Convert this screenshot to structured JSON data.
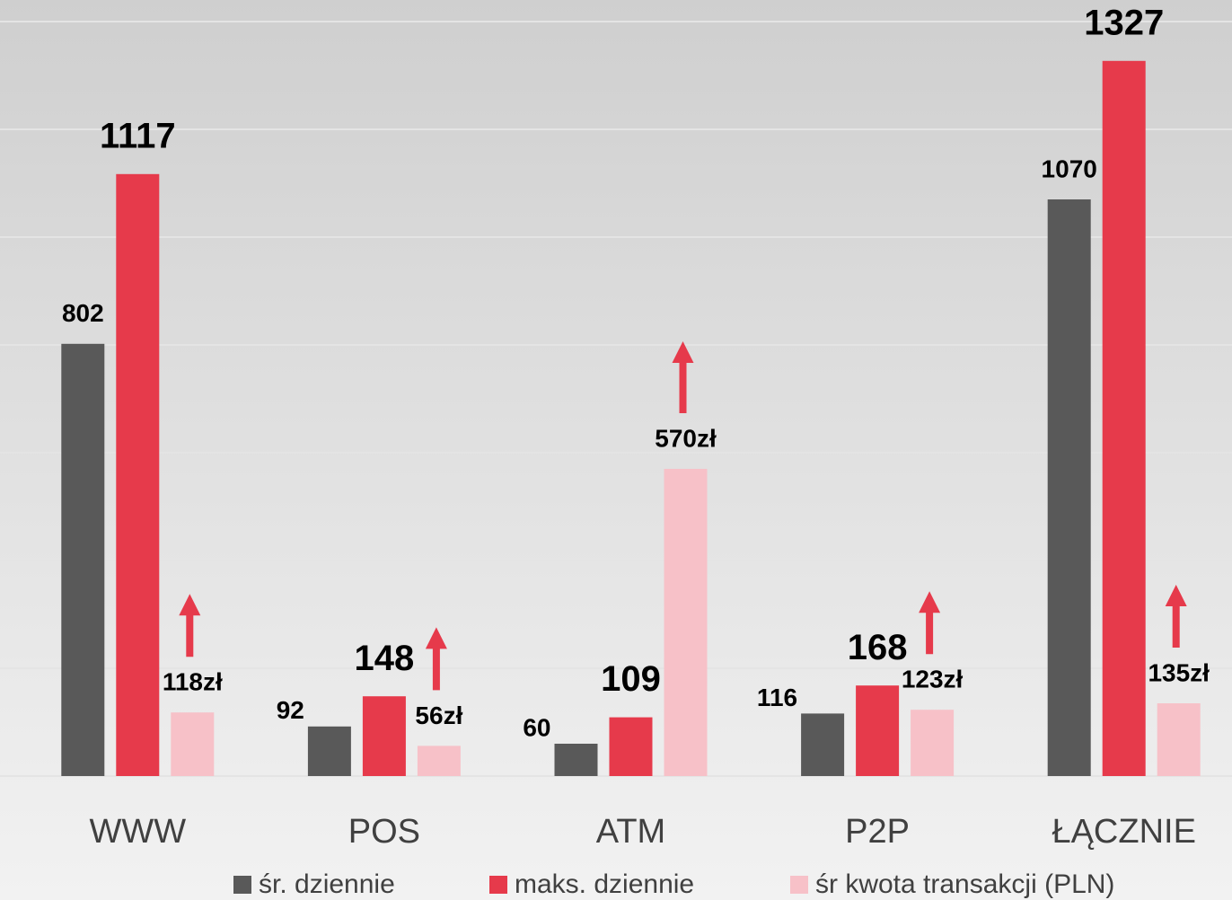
{
  "chart_data": {
    "type": "bar",
    "categories": [
      "WWW",
      "POS",
      "ATM",
      "P2P",
      "ŁĄCZNIE"
    ],
    "series": [
      {
        "name": "śr. dziennie",
        "color": "#595959",
        "values": [
          802,
          92,
          60,
          116,
          1070
        ]
      },
      {
        "name": "maks. dziennie",
        "color": "#e63a4b",
        "values": [
          1117,
          148,
          109,
          168,
          1327
        ]
      },
      {
        "name": "śr kwota transakcji (PLN)",
        "color": "#f7c1c8",
        "values": [
          118,
          56,
          570,
          123,
          135
        ],
        "value_labels": [
          "118zł",
          "56zł",
          "570zł",
          "123zł",
          "135zł"
        ]
      }
    ],
    "ylim": [
      0,
      1400
    ],
    "yticks": [
      0,
      200,
      400,
      600,
      800,
      1000,
      1200,
      1400
    ],
    "grid": true
  }
}
